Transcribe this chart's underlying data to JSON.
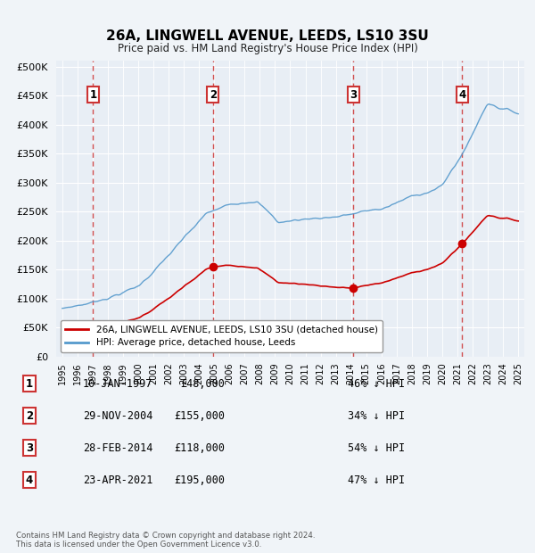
{
  "title": "26A, LINGWELL AVENUE, LEEDS, LS10 3SU",
  "subtitle": "Price paid vs. HM Land Registry's House Price Index (HPI)",
  "yticks": [
    0,
    50000,
    100000,
    150000,
    200000,
    250000,
    300000,
    350000,
    400000,
    450000,
    500000
  ],
  "xlim_start": 1994.6,
  "xlim_end": 2025.4,
  "ylim": [
    0,
    510000
  ],
  "background_color": "#f0f4f8",
  "plot_bg_color": "#e8eef5",
  "grid_color": "#ffffff",
  "hpi_line_color": "#5599cc",
  "price_line_color": "#cc0000",
  "marker_color": "#cc0000",
  "vline_color": "#cc3333",
  "transactions": [
    {
      "date": 1997.03,
      "price": 48000,
      "label": "1"
    },
    {
      "date": 2004.92,
      "price": 155000,
      "label": "2"
    },
    {
      "date": 2014.16,
      "price": 118000,
      "label": "3"
    },
    {
      "date": 2021.31,
      "price": 195000,
      "label": "4"
    }
  ],
  "table_rows": [
    {
      "num": "1",
      "date": "10-JAN-1997",
      "price": "£48,000",
      "pct": "46% ↓ HPI"
    },
    {
      "num": "2",
      "date": "29-NOV-2004",
      "price": "£155,000",
      "pct": "34% ↓ HPI"
    },
    {
      "num": "3",
      "date": "28-FEB-2014",
      "price": "£118,000",
      "pct": "54% ↓ HPI"
    },
    {
      "num": "4",
      "date": "23-APR-2021",
      "price": "£195,000",
      "pct": "47% ↓ HPI"
    }
  ],
  "legend_labels": [
    "26A, LINGWELL AVENUE, LEEDS, LS10 3SU (detached house)",
    "HPI: Average price, detached house, Leeds"
  ],
  "footer": "Contains HM Land Registry data © Crown copyright and database right 2024.\nThis data is licensed under the Open Government Licence v3.0."
}
